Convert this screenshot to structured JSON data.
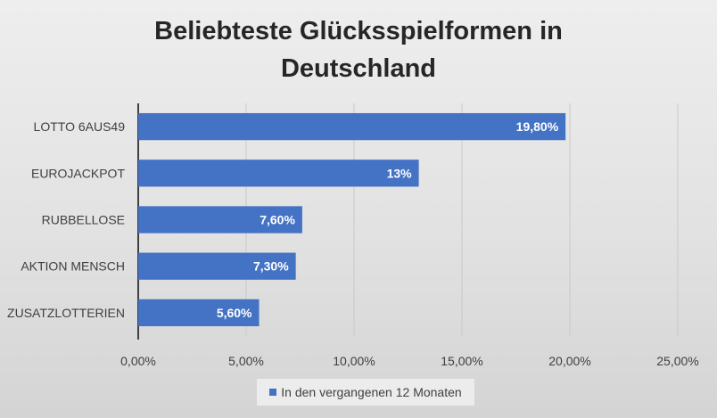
{
  "chart_data": {
    "type": "bar",
    "orientation": "horizontal",
    "title_line1": "Beliebteste Glücksspielformen in",
    "title_line2": "Deutschland",
    "categories": [
      "LOTTO 6AUS49",
      "EUROJACKPOT",
      "RUBBELLOSE",
      "AKTION MENSCH",
      "ZUSATZLOTTERIEN"
    ],
    "series": [
      {
        "name": "In den vergangenen 12 Monaten",
        "values": [
          19.8,
          13,
          7.6,
          7.3,
          5.6
        ],
        "labels": [
          "19,80%",
          "13%",
          "7,60%",
          "7,30%",
          "5,60%"
        ]
      }
    ],
    "xlim": [
      0,
      25
    ],
    "xticks": [
      0,
      5,
      10,
      15,
      20,
      25
    ],
    "xtick_labels": [
      "0,00%",
      "5,00%",
      "10,00%",
      "15,00%",
      "20,00%",
      "25,00%"
    ],
    "grid": true,
    "legend_position": "bottom",
    "bar_color": "#4472c4",
    "grid_color": "#c9c9c9"
  }
}
